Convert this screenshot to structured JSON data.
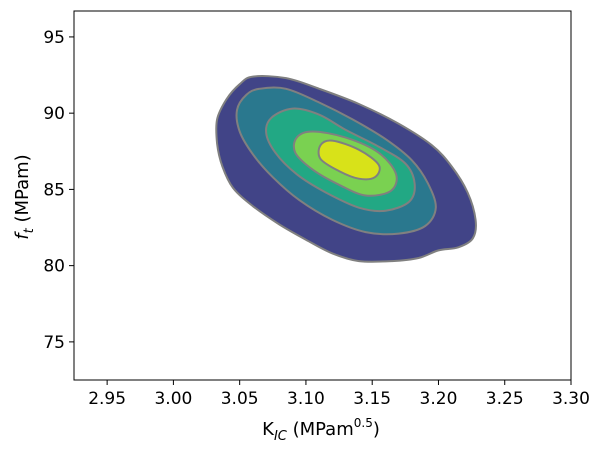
{
  "chart_data": {
    "type": "contour",
    "title": "",
    "xlabel": {
      "base": "K",
      "sub": "IC",
      "rest": " (MPam",
      "sup": "0.5",
      "close": ")"
    },
    "ylabel": {
      "var": "f",
      "sub": "t",
      "rest": " (MPam)"
    },
    "xlim": [
      2.925,
      3.3
    ],
    "ylim": [
      72.5,
      96.7
    ],
    "xticks": [
      2.95,
      3.0,
      3.05,
      3.1,
      3.15,
      3.2,
      3.25,
      3.3
    ],
    "xtick_labels": [
      "2.95",
      "3.00",
      "3.05",
      "3.10",
      "3.15",
      "3.20",
      "3.25",
      "3.30"
    ],
    "yticks": [
      75,
      80,
      85,
      90,
      95
    ],
    "ytick_labels": [
      "75",
      "80",
      "85",
      "90",
      "95"
    ],
    "grid": false,
    "legend": "none",
    "contour_levels": [
      {
        "level": 1,
        "color": "#414487",
        "points": [
          [
            3.06,
            92.4
          ],
          [
            3.085,
            92.3
          ],
          [
            3.11,
            91.6
          ],
          [
            3.14,
            90.6
          ],
          [
            3.17,
            89.3
          ],
          [
            3.195,
            87.9
          ],
          [
            3.21,
            86.5
          ],
          [
            3.222,
            84.8
          ],
          [
            3.228,
            83.0
          ],
          [
            3.226,
            81.8
          ],
          [
            3.215,
            81.2
          ],
          [
            3.2,
            81.0
          ],
          [
            3.185,
            80.5
          ],
          [
            3.165,
            80.3
          ],
          [
            3.14,
            80.3
          ],
          [
            3.12,
            80.8
          ],
          [
            3.1,
            81.7
          ],
          [
            3.08,
            82.7
          ],
          [
            3.06,
            83.9
          ],
          [
            3.045,
            85.1
          ],
          [
            3.037,
            86.5
          ],
          [
            3.033,
            88.0
          ],
          [
            3.033,
            89.6
          ],
          [
            3.04,
            90.9
          ],
          [
            3.05,
            91.9
          ]
        ]
      },
      {
        "level": 2,
        "color": "#2a788e",
        "points": [
          [
            3.065,
            91.6
          ],
          [
            3.085,
            91.6
          ],
          [
            3.11,
            90.7
          ],
          [
            3.135,
            89.6
          ],
          [
            3.16,
            88.3
          ],
          [
            3.18,
            86.9
          ],
          [
            3.192,
            85.4
          ],
          [
            3.198,
            83.8
          ],
          [
            3.19,
            82.6
          ],
          [
            3.17,
            82.1
          ],
          [
            3.145,
            82.2
          ],
          [
            3.12,
            83.0
          ],
          [
            3.095,
            84.3
          ],
          [
            3.075,
            85.8
          ],
          [
            3.06,
            87.3
          ],
          [
            3.05,
            88.8
          ],
          [
            3.048,
            90.2
          ],
          [
            3.055,
            91.2
          ]
        ]
      },
      {
        "level": 3,
        "color": "#22a884",
        "points": [
          [
            3.09,
            90.3
          ],
          [
            3.11,
            89.9
          ],
          [
            3.13,
            88.9
          ],
          [
            3.155,
            87.8
          ],
          [
            3.175,
            86.7
          ],
          [
            3.182,
            85.4
          ],
          [
            3.178,
            84.2
          ],
          [
            3.16,
            83.6
          ],
          [
            3.14,
            83.8
          ],
          [
            3.115,
            84.8
          ],
          [
            3.093,
            86.0
          ],
          [
            3.077,
            87.4
          ],
          [
            3.07,
            88.7
          ],
          [
            3.074,
            89.7
          ]
        ]
      },
      {
        "level": 4,
        "color": "#7ad151",
        "points": [
          [
            3.105,
            88.8
          ],
          [
            3.13,
            88.4
          ],
          [
            3.155,
            87.4
          ],
          [
            3.168,
            86.0
          ],
          [
            3.164,
            84.9
          ],
          [
            3.145,
            84.6
          ],
          [
            3.125,
            85.3
          ],
          [
            3.105,
            86.3
          ],
          [
            3.092,
            87.4
          ],
          [
            3.093,
            88.4
          ]
        ]
      },
      {
        "level": 5,
        "color": "#d8e219",
        "points": [
          [
            3.12,
            88.2
          ],
          [
            3.14,
            87.6
          ],
          [
            3.155,
            86.6
          ],
          [
            3.152,
            85.8
          ],
          [
            3.14,
            85.7
          ],
          [
            3.125,
            86.2
          ],
          [
            3.111,
            87.0
          ],
          [
            3.111,
            87.9
          ]
        ]
      }
    ],
    "contour_line_color": "#808080"
  }
}
